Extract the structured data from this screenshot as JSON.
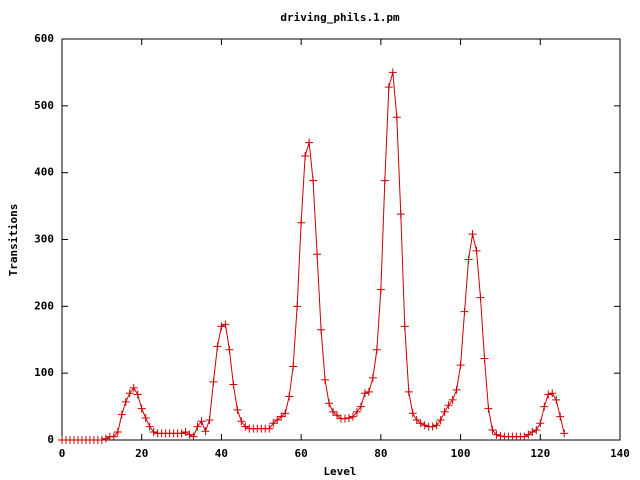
{
  "chart_data": {
    "type": "line",
    "title": "driving_phils.1.pm",
    "x_label": "Level",
    "y_label": "Transitions",
    "xlim": [
      0,
      140
    ],
    "xticks": [
      0,
      20,
      40,
      60,
      80,
      100,
      120,
      140
    ],
    "ylim": [
      0,
      600
    ],
    "yticks": [
      0,
      100,
      200,
      300,
      400,
      500,
      600
    ],
    "grid": false,
    "marker": "+",
    "x": [
      0,
      1,
      2,
      3,
      4,
      5,
      6,
      7,
      8,
      9,
      10,
      11,
      12,
      13,
      14,
      15,
      16,
      17,
      18,
      19,
      20,
      21,
      22,
      23,
      24,
      25,
      26,
      27,
      28,
      29,
      30,
      31,
      32,
      33,
      34,
      35,
      36,
      37,
      38,
      39,
      40,
      41,
      42,
      43,
      44,
      45,
      46,
      47,
      48,
      49,
      50,
      51,
      52,
      53,
      54,
      55,
      56,
      57,
      58,
      59,
      60,
      61,
      62,
      63,
      64,
      65,
      66,
      67,
      68,
      69,
      70,
      71,
      72,
      73,
      74,
      75,
      76,
      77,
      78,
      79,
      80,
      81,
      82,
      83,
      84,
      85,
      86,
      87,
      88,
      89,
      90,
      91,
      92,
      93,
      94,
      95,
      96,
      97,
      98,
      99,
      100,
      101,
      102,
      103,
      104,
      105,
      106,
      107,
      108,
      109,
      110,
      111,
      112,
      113,
      114,
      115,
      116,
      117,
      118,
      119,
      120,
      121,
      122,
      123,
      124,
      125,
      126
    ],
    "series": [
      {
        "color": "#cc0000",
        "values": [
          0,
          0,
          0,
          0,
          0,
          0,
          0,
          0,
          0,
          0,
          0,
          2,
          5,
          5,
          12,
          38,
          57,
          70,
          78,
          68,
          47,
          33,
          20,
          12,
          10,
          10,
          10,
          10,
          10,
          10,
          10,
          12,
          8,
          5,
          20,
          28,
          13,
          30,
          87,
          140,
          170,
          173,
          135,
          83,
          45,
          28,
          20,
          17,
          17,
          17,
          17,
          17,
          17,
          25,
          30,
          35,
          40,
          65,
          110,
          200,
          325,
          425,
          445,
          388,
          278,
          165,
          90,
          55,
          42,
          37,
          32,
          32,
          33,
          35,
          42,
          50,
          70,
          72,
          93,
          135,
          225,
          388,
          528,
          550,
          483,
          338,
          170,
          72,
          40,
          30,
          25,
          22,
          20,
          20,
          22,
          30,
          42,
          52,
          60,
          75,
          112,
          192,
          270,
          308,
          283,
          213,
          122,
          47,
          15,
          8,
          6,
          5,
          5,
          5,
          5,
          5,
          5,
          8,
          12,
          15,
          25,
          50,
          68,
          70,
          60,
          35,
          10
        ]
      }
    ]
  }
}
